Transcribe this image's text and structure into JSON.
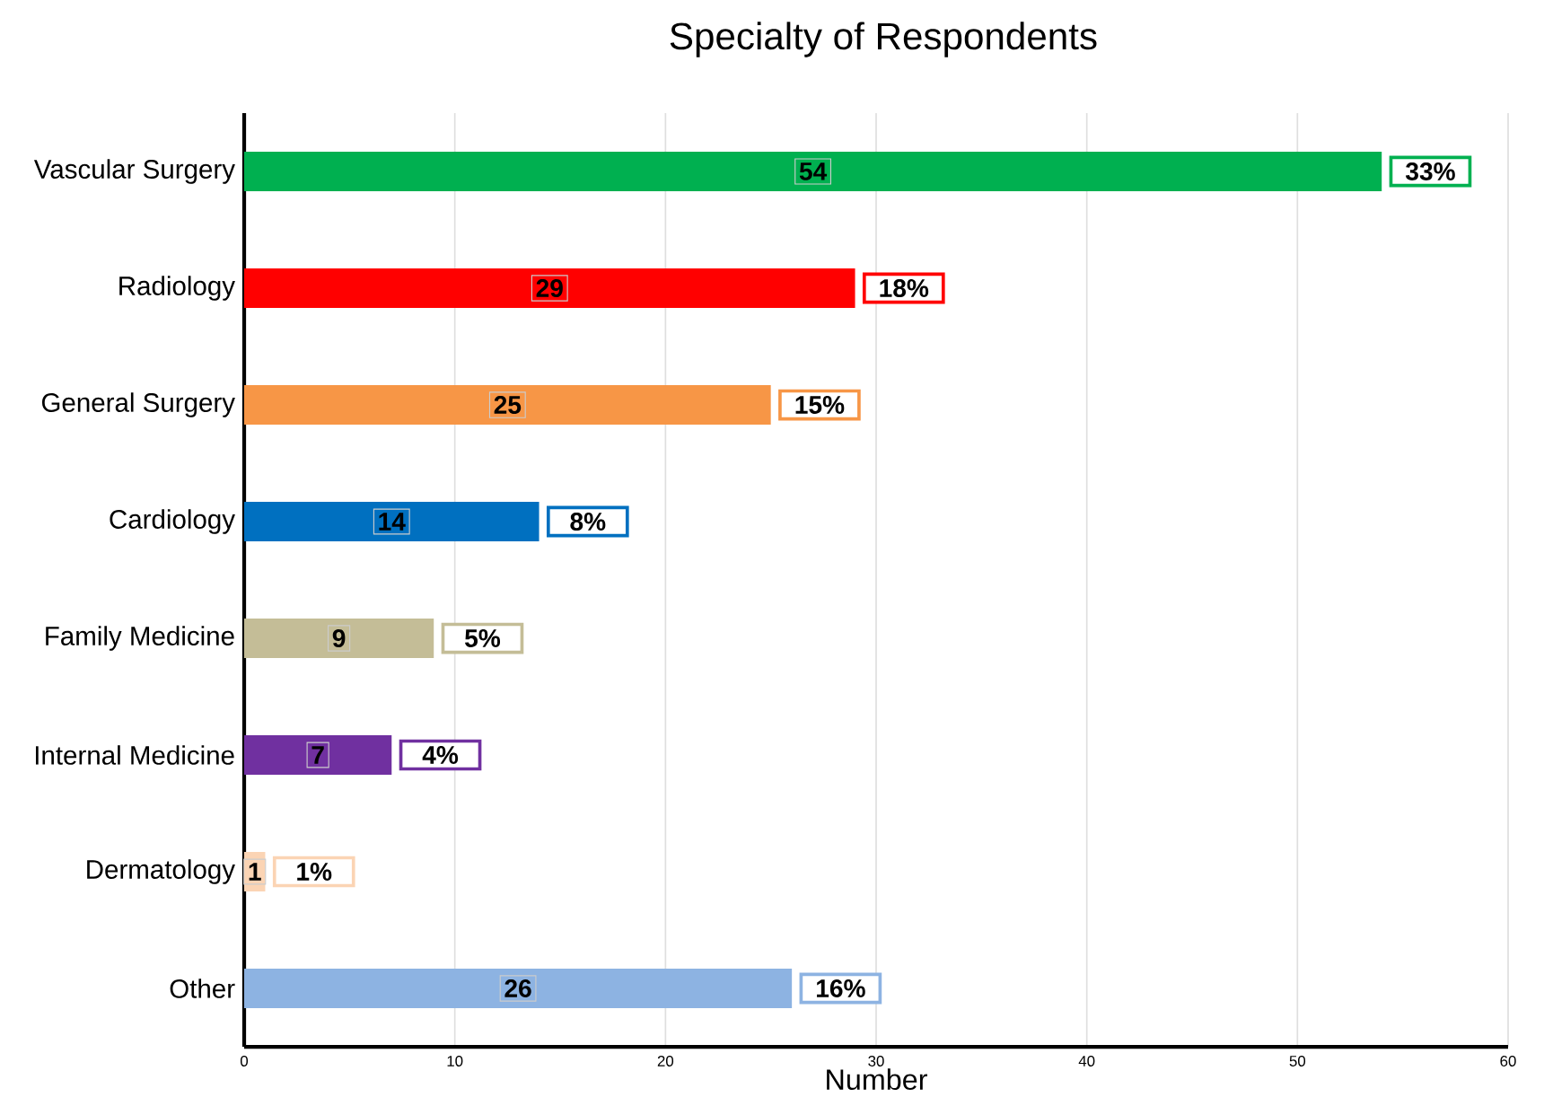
{
  "chart_data": {
    "type": "bar",
    "orientation": "horizontal",
    "title": "Specialty of Respondents",
    "xlabel": "Number",
    "categories": [
      "Vascular Surgery",
      "Radiology",
      "General Surgery",
      "Cardiology",
      "Family Medicine",
      "Internal Medicine",
      "Dermatology",
      "Other"
    ],
    "values": [
      54,
      29,
      25,
      14,
      9,
      7,
      1,
      26
    ],
    "colors": [
      "#00b050",
      "#ff0000",
      "#f79646",
      "#0070c0",
      "#c4bd97",
      "#7030a0",
      "#fbd4b4",
      "#8db3e2"
    ],
    "value_labels": [
      "54",
      "29",
      "25",
      "14",
      "9",
      "7",
      "1",
      "26"
    ],
    "annotations": [
      {
        "text": "33%",
        "x": 54,
        "y": "Vascular Surgery"
      },
      {
        "text": "18%",
        "x": 29,
        "y": "Radiology"
      },
      {
        "text": "15%",
        "x": 25,
        "y": "General Surgery"
      },
      {
        "text": "8%",
        "x": 14,
        "y": "Cardiology"
      },
      {
        "text": "5%",
        "x": 9,
        "y": "Family Medicine"
      },
      {
        "text": "4%",
        "x": 7,
        "y": "Internal Medicine"
      },
      {
        "text": "1%",
        "x": 1,
        "y": "Dermatology"
      },
      {
        "text": "16%",
        "x": 26,
        "y": "Other"
      }
    ],
    "xlim": [
      0,
      60
    ],
    "xticks": [
      0,
      10,
      20,
      30,
      40,
      50,
      60
    ],
    "grid": "x"
  }
}
